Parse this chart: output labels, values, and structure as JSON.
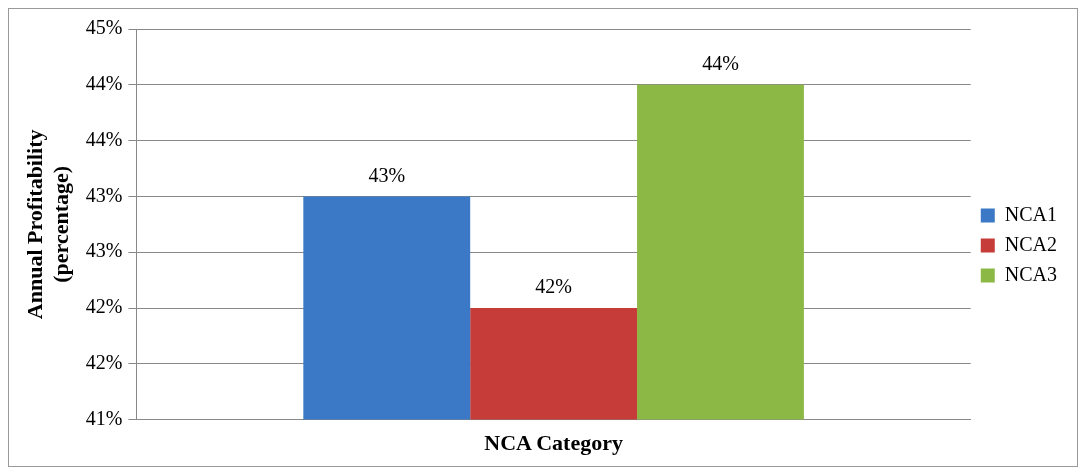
{
  "chart_data": {
    "type": "bar",
    "xlabel": "NCA Category",
    "ylabel": "Annual Profitability (percentage)",
    "categories": [
      null
    ],
    "series": [
      {
        "name": "NCA1",
        "color": "#3b78c6",
        "values": [
          43
        ],
        "value_labels": [
          "43%"
        ]
      },
      {
        "name": "NCA2",
        "color": "#c63c38",
        "values": [
          42
        ],
        "value_labels": [
          "42%"
        ]
      },
      {
        "name": "NCA3",
        "color": "#8cb845",
        "values": [
          44
        ],
        "value_labels": [
          "44%"
        ]
      }
    ],
    "ylim": [
      41,
      44.5
    ],
    "yticks": [
      {
        "value": 41,
        "label": "41%"
      },
      {
        "value": 41.5,
        "label": "42%"
      },
      {
        "value": 42,
        "label": "42%"
      },
      {
        "value": 42.5,
        "label": "43%"
      },
      {
        "value": 43,
        "label": "43%"
      },
      {
        "value": 43.5,
        "label": "44%"
      },
      {
        "value": 44,
        "label": "44%"
      },
      {
        "value": 44.5,
        "label": "45%"
      }
    ],
    "grid": "y",
    "legend": "right"
  }
}
